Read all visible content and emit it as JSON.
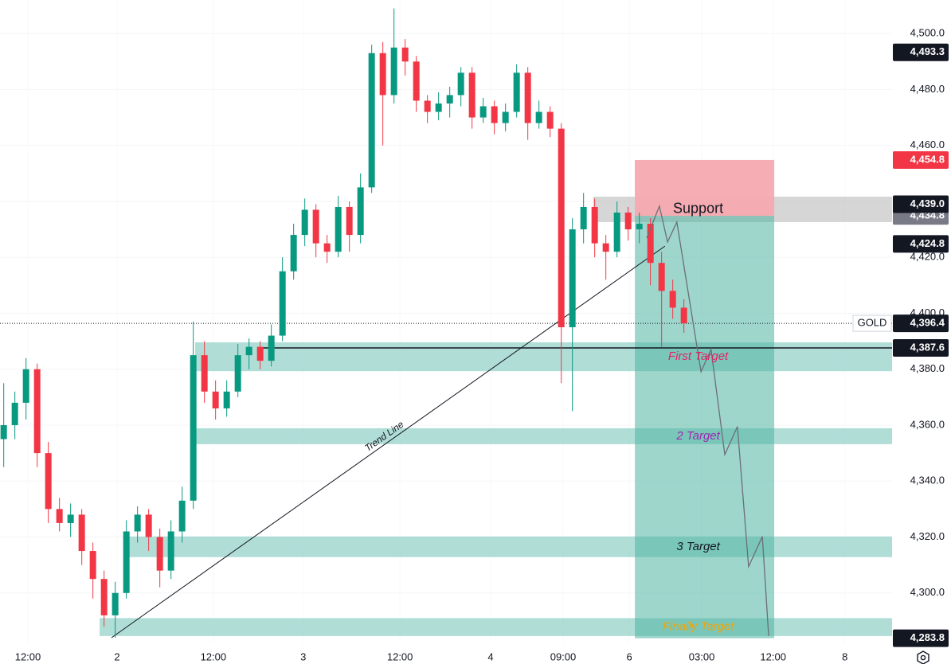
{
  "chart_data": {
    "type": "candlestick",
    "symbol": "GOLD",
    "up_color": "#089981",
    "down_color": "#f23645",
    "grid": true,
    "xlim": [
      0,
      240
    ],
    "ylim": [
      4282,
      4512
    ],
    "yticks": [
      {
        "value": 4300,
        "label": "4,300.0"
      },
      {
        "value": 4320,
        "label": "4,320.0"
      },
      {
        "value": 4340,
        "label": "4,340.0"
      },
      {
        "value": 4360,
        "label": "4,360.0"
      },
      {
        "value": 4380,
        "label": "4,380.0"
      },
      {
        "value": 4400,
        "label": "4,400.0"
      },
      {
        "value": 4420,
        "label": "4,420.0"
      },
      {
        "value": 4440,
        "label": "4,440.0"
      },
      {
        "value": 4460,
        "label": "4,460.0"
      },
      {
        "value": 4480,
        "label": "4,480.0"
      },
      {
        "value": 4500,
        "label": "4,500.0"
      }
    ],
    "xticks": [
      {
        "value": 7.5,
        "label": "12:00"
      },
      {
        "value": 31.5,
        "label": "2"
      },
      {
        "value": 57.4,
        "label": "12:00"
      },
      {
        "value": 81.6,
        "label": "3"
      },
      {
        "value": 107.6,
        "label": "12:00"
      },
      {
        "value": 132,
        "label": "4"
      },
      {
        "value": 151.5,
        "label": "09:00"
      },
      {
        "value": 169.3,
        "label": "6"
      },
      {
        "value": 188.8,
        "label": "03:00"
      },
      {
        "value": 208,
        "label": "12:00"
      },
      {
        "value": 227.3,
        "label": "8"
      }
    ],
    "x": [
      1,
      4,
      7,
      10,
      13,
      16,
      19,
      22,
      25,
      28,
      31,
      34,
      37,
      40,
      43,
      46,
      49,
      52,
      55,
      58,
      61,
      64,
      67,
      70,
      73,
      76,
      79,
      82,
      85,
      88,
      91,
      94,
      97,
      100,
      103,
      106,
      109,
      112,
      115,
      118,
      121,
      124,
      127,
      130,
      133,
      136,
      139,
      142,
      145,
      148,
      151,
      154,
      157,
      160,
      163,
      166,
      169,
      172,
      175,
      178,
      181,
      184
    ],
    "open": [
      4355,
      4360,
      4368,
      4380,
      4350,
      4330,
      4325,
      4328,
      4315,
      4305,
      4292,
      4300,
      4322,
      4328,
      4320,
      4308,
      4322,
      4333,
      4385,
      4372,
      4366,
      4372,
      4385,
      4388,
      4383,
      4392,
      4415,
      4428,
      4437,
      4425,
      4422,
      4438,
      4428,
      4445,
      4493,
      4478,
      4495,
      4490,
      4476,
      4472,
      4475,
      4478,
      4486,
      4470,
      4474,
      4468,
      4472,
      4486,
      4468,
      4472,
      4466,
      4395,
      4430,
      4438,
      4425,
      4422,
      4436,
      4430,
      4432,
      4418,
      4408,
      4402
    ],
    "high": [
      4375,
      4372,
      4384,
      4382,
      4354,
      4334,
      4332,
      4330,
      4318,
      4308,
      4304,
      4326,
      4331,
      4330,
      4323,
      4326,
      4338,
      4397,
      4390,
      4376,
      4376,
      4389,
      4391,
      4390,
      4396,
      4420,
      4432,
      4441,
      4439,
      4428,
      4442,
      4440,
      4450,
      4496,
      4497,
      4509,
      4498,
      4492,
      4478,
      4479,
      4481,
      4488,
      4488,
      4477,
      4476,
      4475,
      4489,
      4488,
      4476,
      4474,
      4468,
      4434,
      4443,
      4441,
      4428,
      4440,
      4438,
      4436,
      4434,
      4422,
      4412,
      4405
    ],
    "low": [
      4345,
      4355,
      4362,
      4345,
      4325,
      4322,
      4320,
      4310,
      4298,
      4288,
      4284,
      4298,
      4318,
      4315,
      4302,
      4305,
      4318,
      4330,
      4368,
      4362,
      4363,
      4370,
      4380,
      4380,
      4381,
      4390,
      4412,
      4424,
      4420,
      4418,
      4420,
      4422,
      4425,
      4443,
      4460,
      4475,
      4485,
      4472,
      4468,
      4469,
      4470,
      4474,
      4466,
      4468,
      4464,
      4465,
      4470,
      4462,
      4466,
      4463,
      4375,
      4365,
      4425,
      4420,
      4412,
      4420,
      4426,
      4425,
      4410,
      4388,
      4398,
      4393
    ],
    "close": [
      4360,
      4368,
      4380,
      4350,
      4330,
      4325,
      4328,
      4315,
      4305,
      4292,
      4300,
      4322,
      4328,
      4320,
      4308,
      4322,
      4333,
      4385,
      4372,
      4366,
      4372,
      4385,
      4388,
      4383,
      4392,
      4415,
      4428,
      4437,
      4425,
      4422,
      4438,
      4428,
      4445,
      4493,
      4478,
      4495,
      4490,
      4476,
      4472,
      4475,
      4478,
      4486,
      4470,
      4474,
      4468,
      4472,
      4486,
      4468,
      4472,
      4466,
      4395,
      4430,
      4438,
      4425,
      4422,
      4436,
      4430,
      4432,
      4418,
      4408,
      4402,
      4396.4
    ],
    "zones": [
      {
        "label": "Support",
        "top": 4441.7,
        "bottom": 4432.6,
        "from": 159.6,
        "fill": "#c4c4c4",
        "text_color": "#131722",
        "italic": false
      },
      {
        "label": "First Target",
        "top": 4389.6,
        "bottom": 4379.3,
        "from": 52.5,
        "fill": "#8fd0c6",
        "text_color": "#e91e63",
        "italic": true
      },
      {
        "label": "2 Target",
        "top": 4358.9,
        "bottom": 4353.2,
        "from": 51.4,
        "fill": "#8fd0c6",
        "text_color": "#9c27b0",
        "italic": true
      },
      {
        "label": "3 Target",
        "top": 4320.2,
        "bottom": 4312.8,
        "from": 33.2,
        "fill": "#8fd0c6",
        "text_color": "#131722",
        "italic": true
      },
      {
        "label": "Finally Target",
        "top": 4291.0,
        "bottom": 4284.6,
        "from": 26.8,
        "fill": "#8fd0c6",
        "text_color": "#f5a300",
        "italic": true
      }
    ],
    "position": {
      "from": 170.8,
      "to": 208.3,
      "stop": 4454.8,
      "entry": 4434.8,
      "target": 4283.8,
      "stop_color": "#f7a9b0",
      "target_color": "#4fb4a2"
    },
    "hline": {
      "value": 4387.6,
      "from": 70.7,
      "color": "#131722"
    },
    "trend_line": {
      "label": "Trend Line",
      "x": [
        30,
        178.9
      ],
      "y": [
        4284,
        4424
      ],
      "color": "#131722"
    },
    "projection": {
      "x": [
        174,
        177.4,
        179.6,
        182.1,
        188.6,
        191.3,
        195,
        198.4,
        201.4,
        205.1,
        206.8
      ],
      "y": [
        4426.9,
        4438.3,
        4425.5,
        4432.6,
        4379.1,
        4387.1,
        4349.5,
        4359.5,
        4309.4,
        4320.2,
        4284.6
      ],
      "color": "#6b6e78"
    },
    "price_labels": [
      {
        "value": 4493.3,
        "label": "4,493.3",
        "bg": "#131722"
      },
      {
        "value": 4454.8,
        "label": "4,454.8",
        "bg": "#f23645"
      },
      {
        "value": 4434.8,
        "label": "4,434.8",
        "bg": "#787b86"
      },
      {
        "value": 4439.0,
        "label": "4,439.0",
        "bg": "#131722"
      },
      {
        "value": 4424.8,
        "label": "4,424.8",
        "bg": "#131722"
      },
      {
        "value": 4396.4,
        "label": "4,396.4",
        "bg": "#131722",
        "tag": "GOLD"
      },
      {
        "value": 4387.6,
        "label": "4,387.6",
        "bg": "#131722"
      },
      {
        "value": 4283.8,
        "label": "4,283.8",
        "bg": "#131722"
      }
    ]
  }
}
